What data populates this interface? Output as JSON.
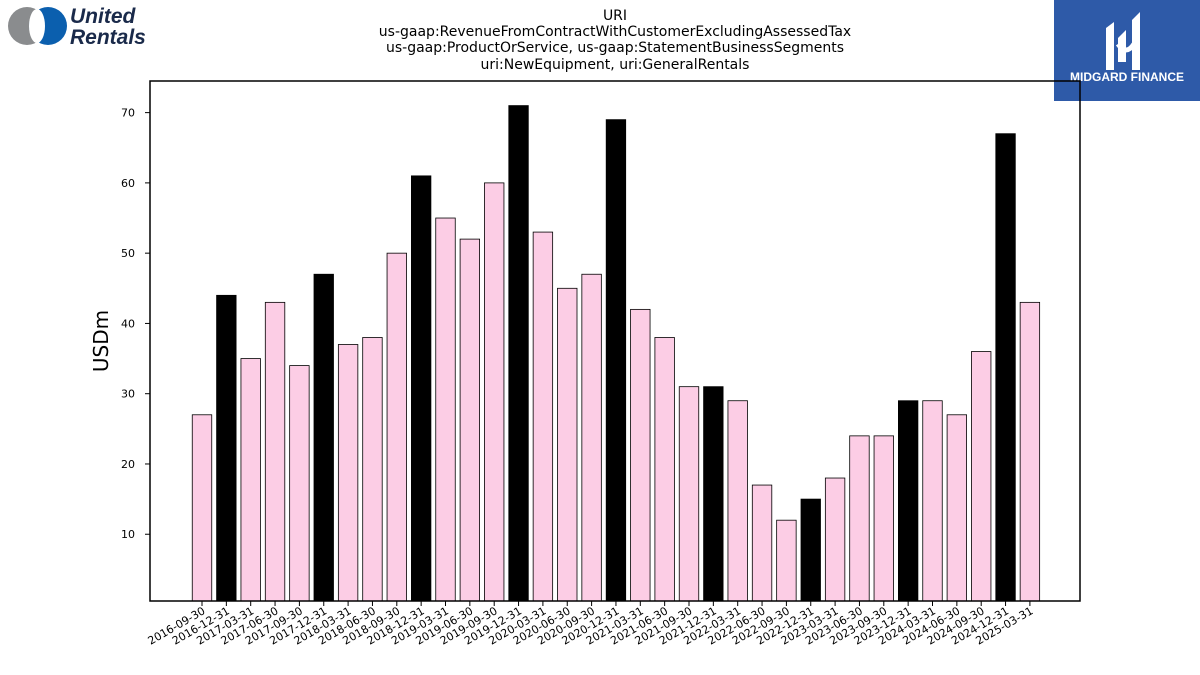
{
  "brand": {
    "left_logo_text": [
      "United",
      "Rentals"
    ],
    "right_logo_text": "MIDGARD FINANCE",
    "colors": {
      "ur_blue": "#0b5fae",
      "ur_gray": "#8a8c8e",
      "midgard_blue": "#2e5aa8"
    }
  },
  "chart_data": {
    "type": "bar",
    "title": [
      "URI",
      "us-gaap:RevenueFromContractWithCustomerExcludingAssessedTax",
      "us-gaap:ProductOrService, us-gaap:StatementBusinessSegments",
      "uri:NewEquipment, uri:GeneralRentals"
    ],
    "xlabel": "",
    "ylabel": "USDm",
    "ylim": [
      0.5,
      74.5
    ],
    "yticks": [
      10,
      20,
      30,
      40,
      50,
      60,
      70
    ],
    "categories": [
      "2016-09-30",
      "2016-12-31",
      "2017-03-31",
      "2017-06-30",
      "2017-09-30",
      "2017-12-31",
      "2018-03-31",
      "2018-06-30",
      "2018-09-30",
      "2018-12-31",
      "2019-03-31",
      "2019-06-30",
      "2019-09-30",
      "2019-12-31",
      "2020-03-31",
      "2020-06-30",
      "2020-09-30",
      "2020-12-31",
      "2021-03-31",
      "2021-06-30",
      "2021-09-30",
      "2021-12-31",
      "2022-03-31",
      "2022-06-30",
      "2022-09-30",
      "2022-12-31",
      "2023-03-31",
      "2023-06-30",
      "2023-09-30",
      "2023-12-31",
      "2024-03-31",
      "2024-06-30",
      "2024-09-30",
      "2024-12-31",
      "2025-03-31"
    ],
    "values": [
      27,
      44,
      35,
      43,
      34,
      47,
      37,
      38,
      50,
      61,
      55,
      52,
      60,
      71,
      53,
      45,
      47,
      69,
      42,
      38,
      31,
      31,
      29,
      17,
      12,
      15,
      18,
      24,
      24,
      29,
      29,
      27,
      36,
      67,
      43
    ],
    "highlight": [
      false,
      true,
      false,
      false,
      false,
      true,
      false,
      false,
      false,
      true,
      false,
      false,
      false,
      true,
      false,
      false,
      false,
      true,
      false,
      false,
      false,
      true,
      false,
      false,
      false,
      true,
      false,
      false,
      false,
      true,
      false,
      false,
      false,
      true,
      false
    ],
    "colors": {
      "normal": "#fccde5",
      "highlight": "#000000",
      "edge": "#000000"
    },
    "grid": false,
    "legend": "none"
  }
}
